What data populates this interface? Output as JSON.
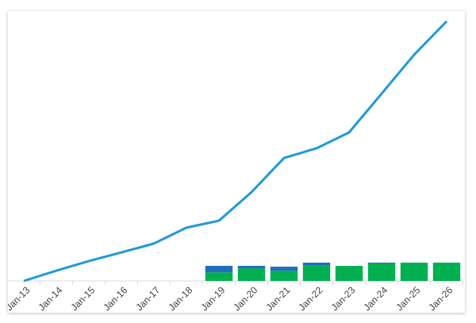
{
  "chart_data": {
    "type": "combo",
    "categories": [
      "Jan-13",
      "Jan-14",
      "Jan-15",
      "Jan-16",
      "Jan-17",
      "Jan-18",
      "Jan-19",
      "Jan-20",
      "Jan-21",
      "Jan-22",
      "Jan-23",
      "Jan-24",
      "Jan-25",
      "Jan-26"
    ],
    "ylim": [
      0,
      100
    ],
    "series": [
      {
        "type": "line",
        "color": "#1f9ad6",
        "values": [
          0,
          3.8,
          7.4,
          10.6,
          13.9,
          19.8,
          22.4,
          33.0,
          45.7,
          49.3,
          55.2,
          69.6,
          84.1,
          96.5
        ]
      },
      {
        "type": "bar",
        "color": "#00b050",
        "values": [
          null,
          null,
          null,
          null,
          null,
          null,
          3.2,
          4.7,
          3.8,
          5.9,
          5.6,
          6.5,
          6.8,
          6.8
        ]
      },
      {
        "type": "bar",
        "color": "#1f6fbf",
        "values": [
          null,
          null,
          null,
          null,
          null,
          null,
          2.4,
          0.9,
          1.5,
          0.9,
          0,
          0.3,
          0,
          0
        ]
      }
    ]
  }
}
